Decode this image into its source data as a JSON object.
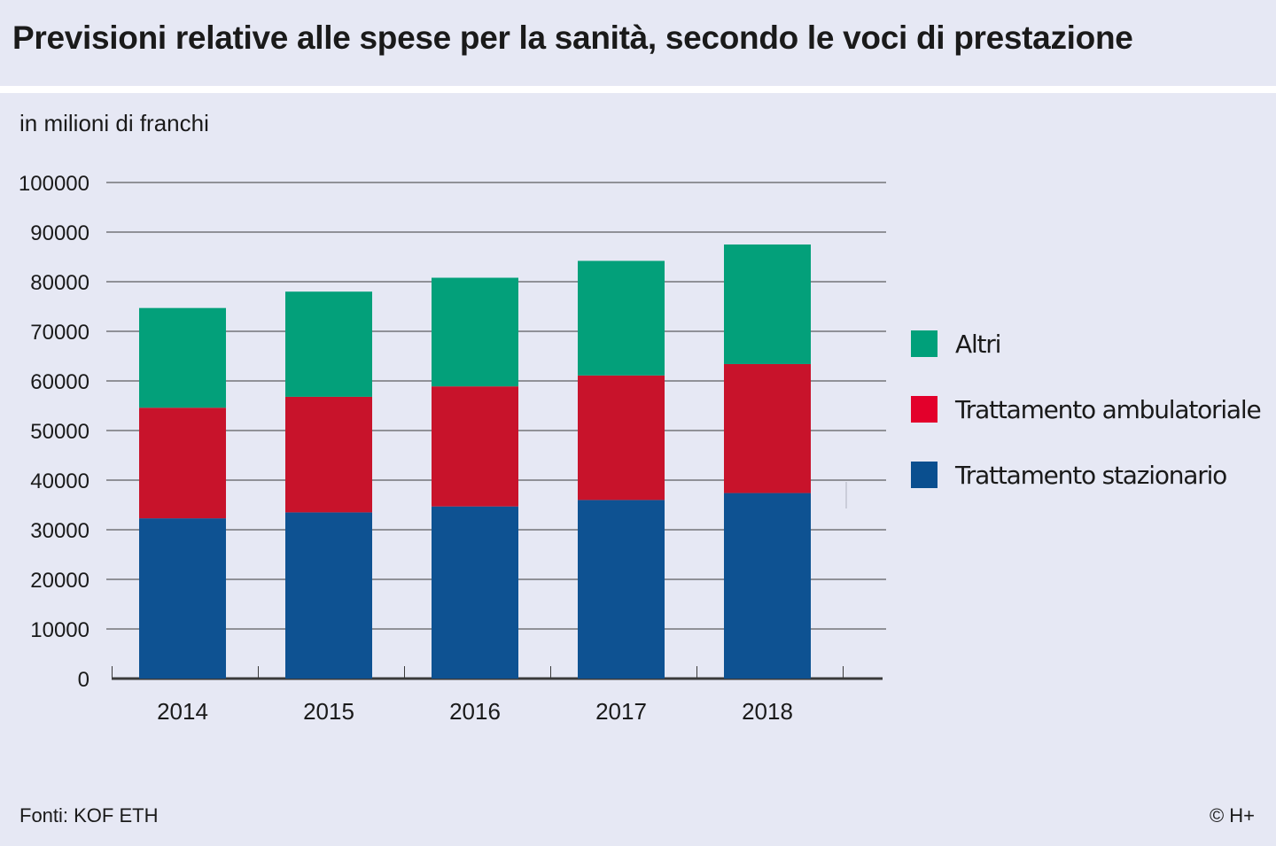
{
  "header": {
    "title": "Previsioni relative alle spese per la sanità, secondo le voci di prestazione"
  },
  "unit_label": "in milioni di franchi",
  "footer": {
    "source": "Fonti: KOF ETH",
    "copyright": "© H+"
  },
  "legend": [
    {
      "name": "Altri",
      "color": "#00a07a"
    },
    {
      "name": "Trattamento ambulatoriale",
      "color": "#e3002b"
    },
    {
      "name": "Trattamento stazionario",
      "color": "#0a4f8f"
    }
  ],
  "chart_data": {
    "type": "bar",
    "stacked": true,
    "categories": [
      "2014",
      "2015",
      "2016",
      "2017",
      "2018"
    ],
    "series": [
      {
        "name": "Trattamento stazionario",
        "color": "#0e5292",
        "values": [
          32300,
          33500,
          34700,
          36000,
          37400
        ]
      },
      {
        "name": "Trattamento ambulatoriale",
        "color": "#c8132b",
        "values": [
          22300,
          23300,
          24200,
          25100,
          26000
        ]
      },
      {
        "name": "Altri",
        "color": "#03a07a",
        "values": [
          20100,
          21200,
          21900,
          23100,
          24100
        ]
      }
    ],
    "ylim": [
      0,
      100000
    ],
    "yticks": [
      0,
      10000,
      20000,
      30000,
      40000,
      50000,
      60000,
      70000,
      80000,
      90000,
      100000
    ],
    "ylabel": "in milioni di franchi",
    "grid": true,
    "legend_position": "right"
  }
}
